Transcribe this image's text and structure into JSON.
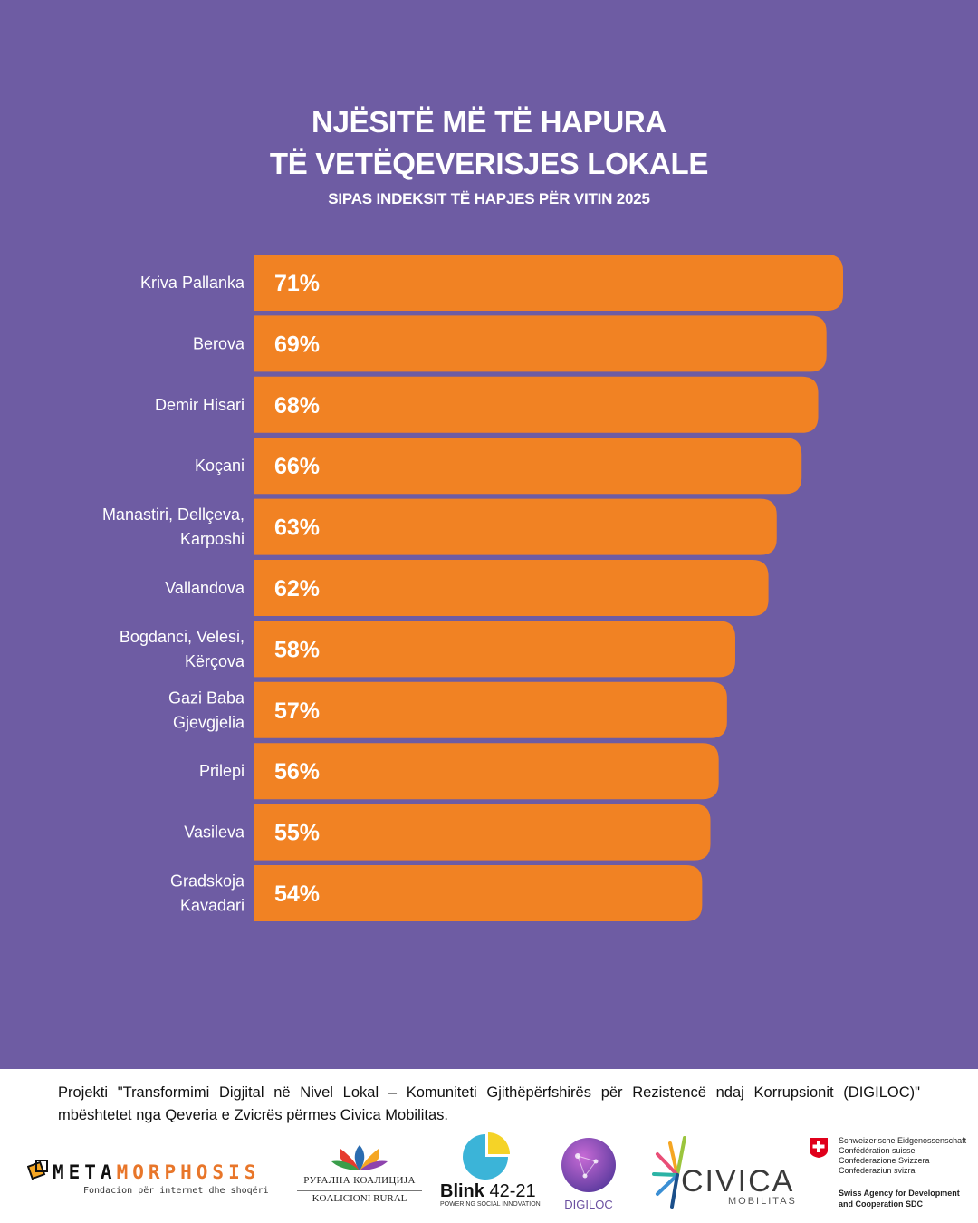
{
  "header": {
    "title_line1": "NJËSITË MË TË HAPURA",
    "title_line2": "TË VETËQEVERISJES LOKALE",
    "subtitle": "SIPAS INDEKSIT TË HAPJES PËR VITIN 2025"
  },
  "chart_data": {
    "type": "bar",
    "orientation": "horizontal",
    "categories": [
      [
        "Kriva Pallanka"
      ],
      [
        "Berova"
      ],
      [
        "Demir Hisari"
      ],
      [
        "Koçani"
      ],
      [
        "Manastiri, Dellçeva,",
        "Karposhi"
      ],
      [
        "Vallandova"
      ],
      [
        "Bogdanci, Velesi,",
        "Kërçova"
      ],
      [
        "Gazi Baba",
        "Gjevgjelia"
      ],
      [
        "Prilepi"
      ],
      [
        "Vasileva"
      ],
      [
        "Gradskoja",
        "Kavadari"
      ]
    ],
    "values": [
      71,
      69,
      68,
      66,
      63,
      62,
      58,
      57,
      56,
      55,
      54
    ],
    "value_labels": [
      "71%",
      "69%",
      "68%",
      "66%",
      "63%",
      "62%",
      "58%",
      "57%",
      "56%",
      "55%",
      "54%"
    ],
    "bar_color": "#f18223",
    "grid": false,
    "legend": "none"
  },
  "footer": {
    "text": "Projekti \"Transformimi Digjital në Nivel Lokal – Komuniteti Gjithëpërfshirës për Rezistencë ndaj Korrupsionit (DIGILOC)\" mbështetet nga Qeveria e Zvicrës përmes Civica Mobilitas.",
    "logos": {
      "metamorphosis": {
        "word_black": "META",
        "word_orange": "MORPHOSIS",
        "sub": "Fondacion për internet dhe shoqëri"
      },
      "rural": {
        "line1": "РУРАЛНА КОАЛИЦИЈА",
        "line2": "KOALICIONI RURAL"
      },
      "blink": {
        "word": "Blink",
        "num": "42-21",
        "sub": "POWERING SOCIAL INNOVATION"
      },
      "digiloc": {
        "word": "DIGILOC"
      },
      "civica": {
        "word": "CIVICA",
        "sub": "MOBILITAS"
      },
      "swiss": {
        "line1": "Schweizerische Eidgenossenschaft",
        "line2": "Confédération suisse",
        "line3": "Confederazione Svizzera",
        "line4": "Confederaziun svizra",
        "bold1": "Swiss Agency for Development",
        "bold2": "and Cooperation SDC"
      }
    }
  },
  "colors": {
    "background": "#6e5ca3",
    "bar": "#f18223",
    "text_light": "#ffffff",
    "footer_bg": "#ffffff"
  }
}
